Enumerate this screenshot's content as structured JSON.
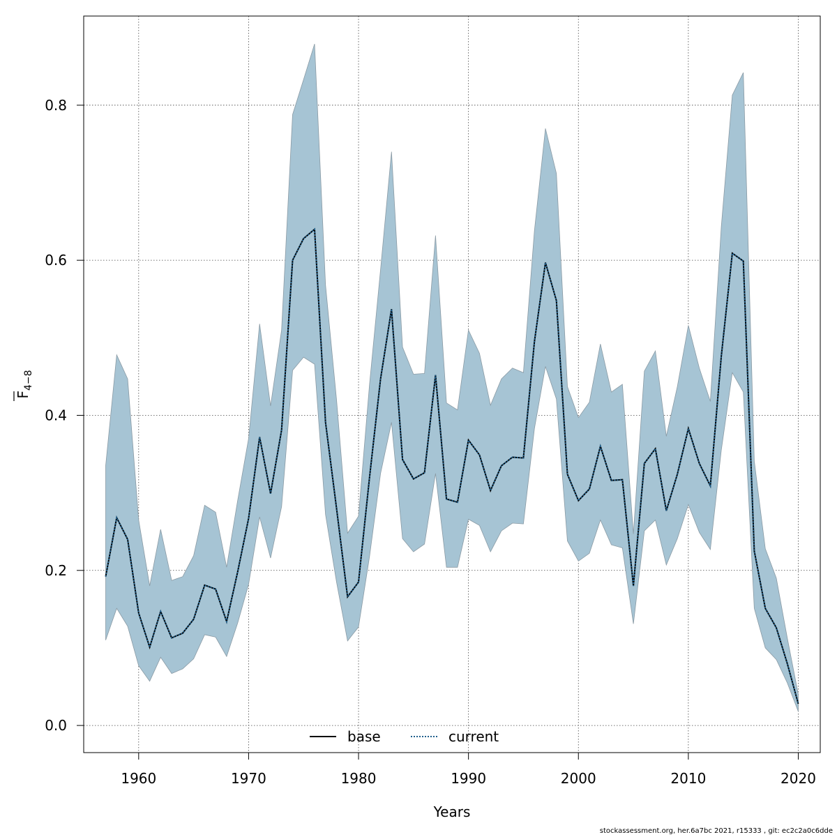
{
  "chart_data": {
    "type": "line",
    "xlabel": "Years",
    "ylabel_main": "F",
    "ylabel_sub": "4−8",
    "xlim": [
      1955,
      2022
    ],
    "ylim": [
      -0.035,
      0.915
    ],
    "x_ticks": [
      1960,
      1970,
      1980,
      1990,
      2000,
      2010,
      2020
    ],
    "y_ticks": [
      0.0,
      0.2,
      0.4,
      0.6,
      0.8
    ],
    "y_tick_labels": [
      "0.0",
      "0.2",
      "0.4",
      "0.6",
      "0.8"
    ],
    "grid": true,
    "legend_position": "bottom",
    "band_color": "#a6c4d4",
    "band_stroke": "#8a9aa4",
    "years": [
      1957,
      1958,
      1959,
      1960,
      1961,
      1962,
      1963,
      1964,
      1965,
      1966,
      1967,
      1968,
      1969,
      1970,
      1971,
      1972,
      1973,
      1974,
      1975,
      1976,
      1977,
      1978,
      1979,
      1980,
      1981,
      1982,
      1983,
      1984,
      1985,
      1986,
      1987,
      1988,
      1989,
      1990,
      1991,
      1992,
      1993,
      1994,
      1995,
      1996,
      1997,
      1998,
      1999,
      2000,
      2001,
      2002,
      2003,
      2004,
      2005,
      2006,
      2007,
      2008,
      2009,
      2010,
      2011,
      2012,
      2013,
      2014,
      2015,
      2016,
      2017,
      2018,
      2019,
      2020
    ],
    "upper": [
      0.335,
      0.478,
      0.447,
      0.265,
      0.18,
      0.253,
      0.187,
      0.192,
      0.219,
      0.284,
      0.275,
      0.204,
      0.29,
      0.37,
      0.518,
      0.412,
      0.51,
      0.788,
      0.833,
      0.879,
      0.568,
      0.42,
      0.248,
      0.27,
      0.44,
      0.588,
      0.74,
      0.488,
      0.453,
      0.454,
      0.632,
      0.416,
      0.407,
      0.51,
      0.48,
      0.413,
      0.447,
      0.461,
      0.455,
      0.638,
      0.77,
      0.712,
      0.437,
      0.397,
      0.417,
      0.492,
      0.43,
      0.44,
      0.247,
      0.457,
      0.483,
      0.373,
      0.437,
      0.516,
      0.461,
      0.418,
      0.643,
      0.813,
      0.842,
      0.341,
      0.228,
      0.19,
      0.113,
      0.04
    ],
    "lower": [
      0.11,
      0.151,
      0.128,
      0.077,
      0.057,
      0.088,
      0.067,
      0.073,
      0.086,
      0.117,
      0.114,
      0.089,
      0.132,
      0.182,
      0.269,
      0.216,
      0.282,
      0.458,
      0.475,
      0.466,
      0.272,
      0.185,
      0.109,
      0.127,
      0.218,
      0.325,
      0.391,
      0.241,
      0.224,
      0.234,
      0.325,
      0.204,
      0.204,
      0.266,
      0.258,
      0.224,
      0.251,
      0.261,
      0.26,
      0.383,
      0.463,
      0.421,
      0.238,
      0.212,
      0.222,
      0.265,
      0.233,
      0.229,
      0.131,
      0.251,
      0.265,
      0.207,
      0.241,
      0.285,
      0.249,
      0.227,
      0.355,
      0.455,
      0.43,
      0.151,
      0.1,
      0.085,
      0.055,
      0.018
    ],
    "series": [
      {
        "name": "base",
        "color": "#000000",
        "dash": "solid",
        "values": [
          0.192,
          0.268,
          0.24,
          0.145,
          0.101,
          0.147,
          0.113,
          0.119,
          0.137,
          0.181,
          0.176,
          0.134,
          0.198,
          0.267,
          0.372,
          0.299,
          0.381,
          0.6,
          0.628,
          0.64,
          0.391,
          0.28,
          0.166,
          0.185,
          0.32,
          0.447,
          0.537,
          0.343,
          0.318,
          0.326,
          0.452,
          0.292,
          0.288,
          0.368,
          0.349,
          0.303,
          0.335,
          0.346,
          0.345,
          0.495,
          0.597,
          0.548,
          0.324,
          0.29,
          0.305,
          0.36,
          0.316,
          0.317,
          0.18,
          0.338,
          0.357,
          0.277,
          0.324,
          0.383,
          0.338,
          0.309,
          0.476,
          0.609,
          0.599,
          0.225,
          0.151,
          0.126,
          0.08,
          0.028
        ]
      },
      {
        "name": "current",
        "color": "#1f5f8c",
        "dash": "dotted",
        "values": [
          0.192,
          0.268,
          0.24,
          0.145,
          0.101,
          0.147,
          0.113,
          0.119,
          0.137,
          0.181,
          0.176,
          0.134,
          0.198,
          0.267,
          0.372,
          0.299,
          0.381,
          0.6,
          0.628,
          0.64,
          0.391,
          0.28,
          0.166,
          0.185,
          0.32,
          0.447,
          0.537,
          0.343,
          0.318,
          0.326,
          0.452,
          0.292,
          0.288,
          0.368,
          0.349,
          0.303,
          0.335,
          0.346,
          0.345,
          0.495,
          0.597,
          0.548,
          0.324,
          0.29,
          0.305,
          0.36,
          0.316,
          0.317,
          0.18,
          0.338,
          0.357,
          0.277,
          0.324,
          0.383,
          0.338,
          0.309,
          0.476,
          0.609,
          0.599,
          0.225,
          0.151,
          0.126,
          0.08,
          0.028
        ]
      }
    ]
  },
  "footer": "stockassessment.org, her.6a7bc  2021, r15333 , git: ec2c2a0c6dde"
}
